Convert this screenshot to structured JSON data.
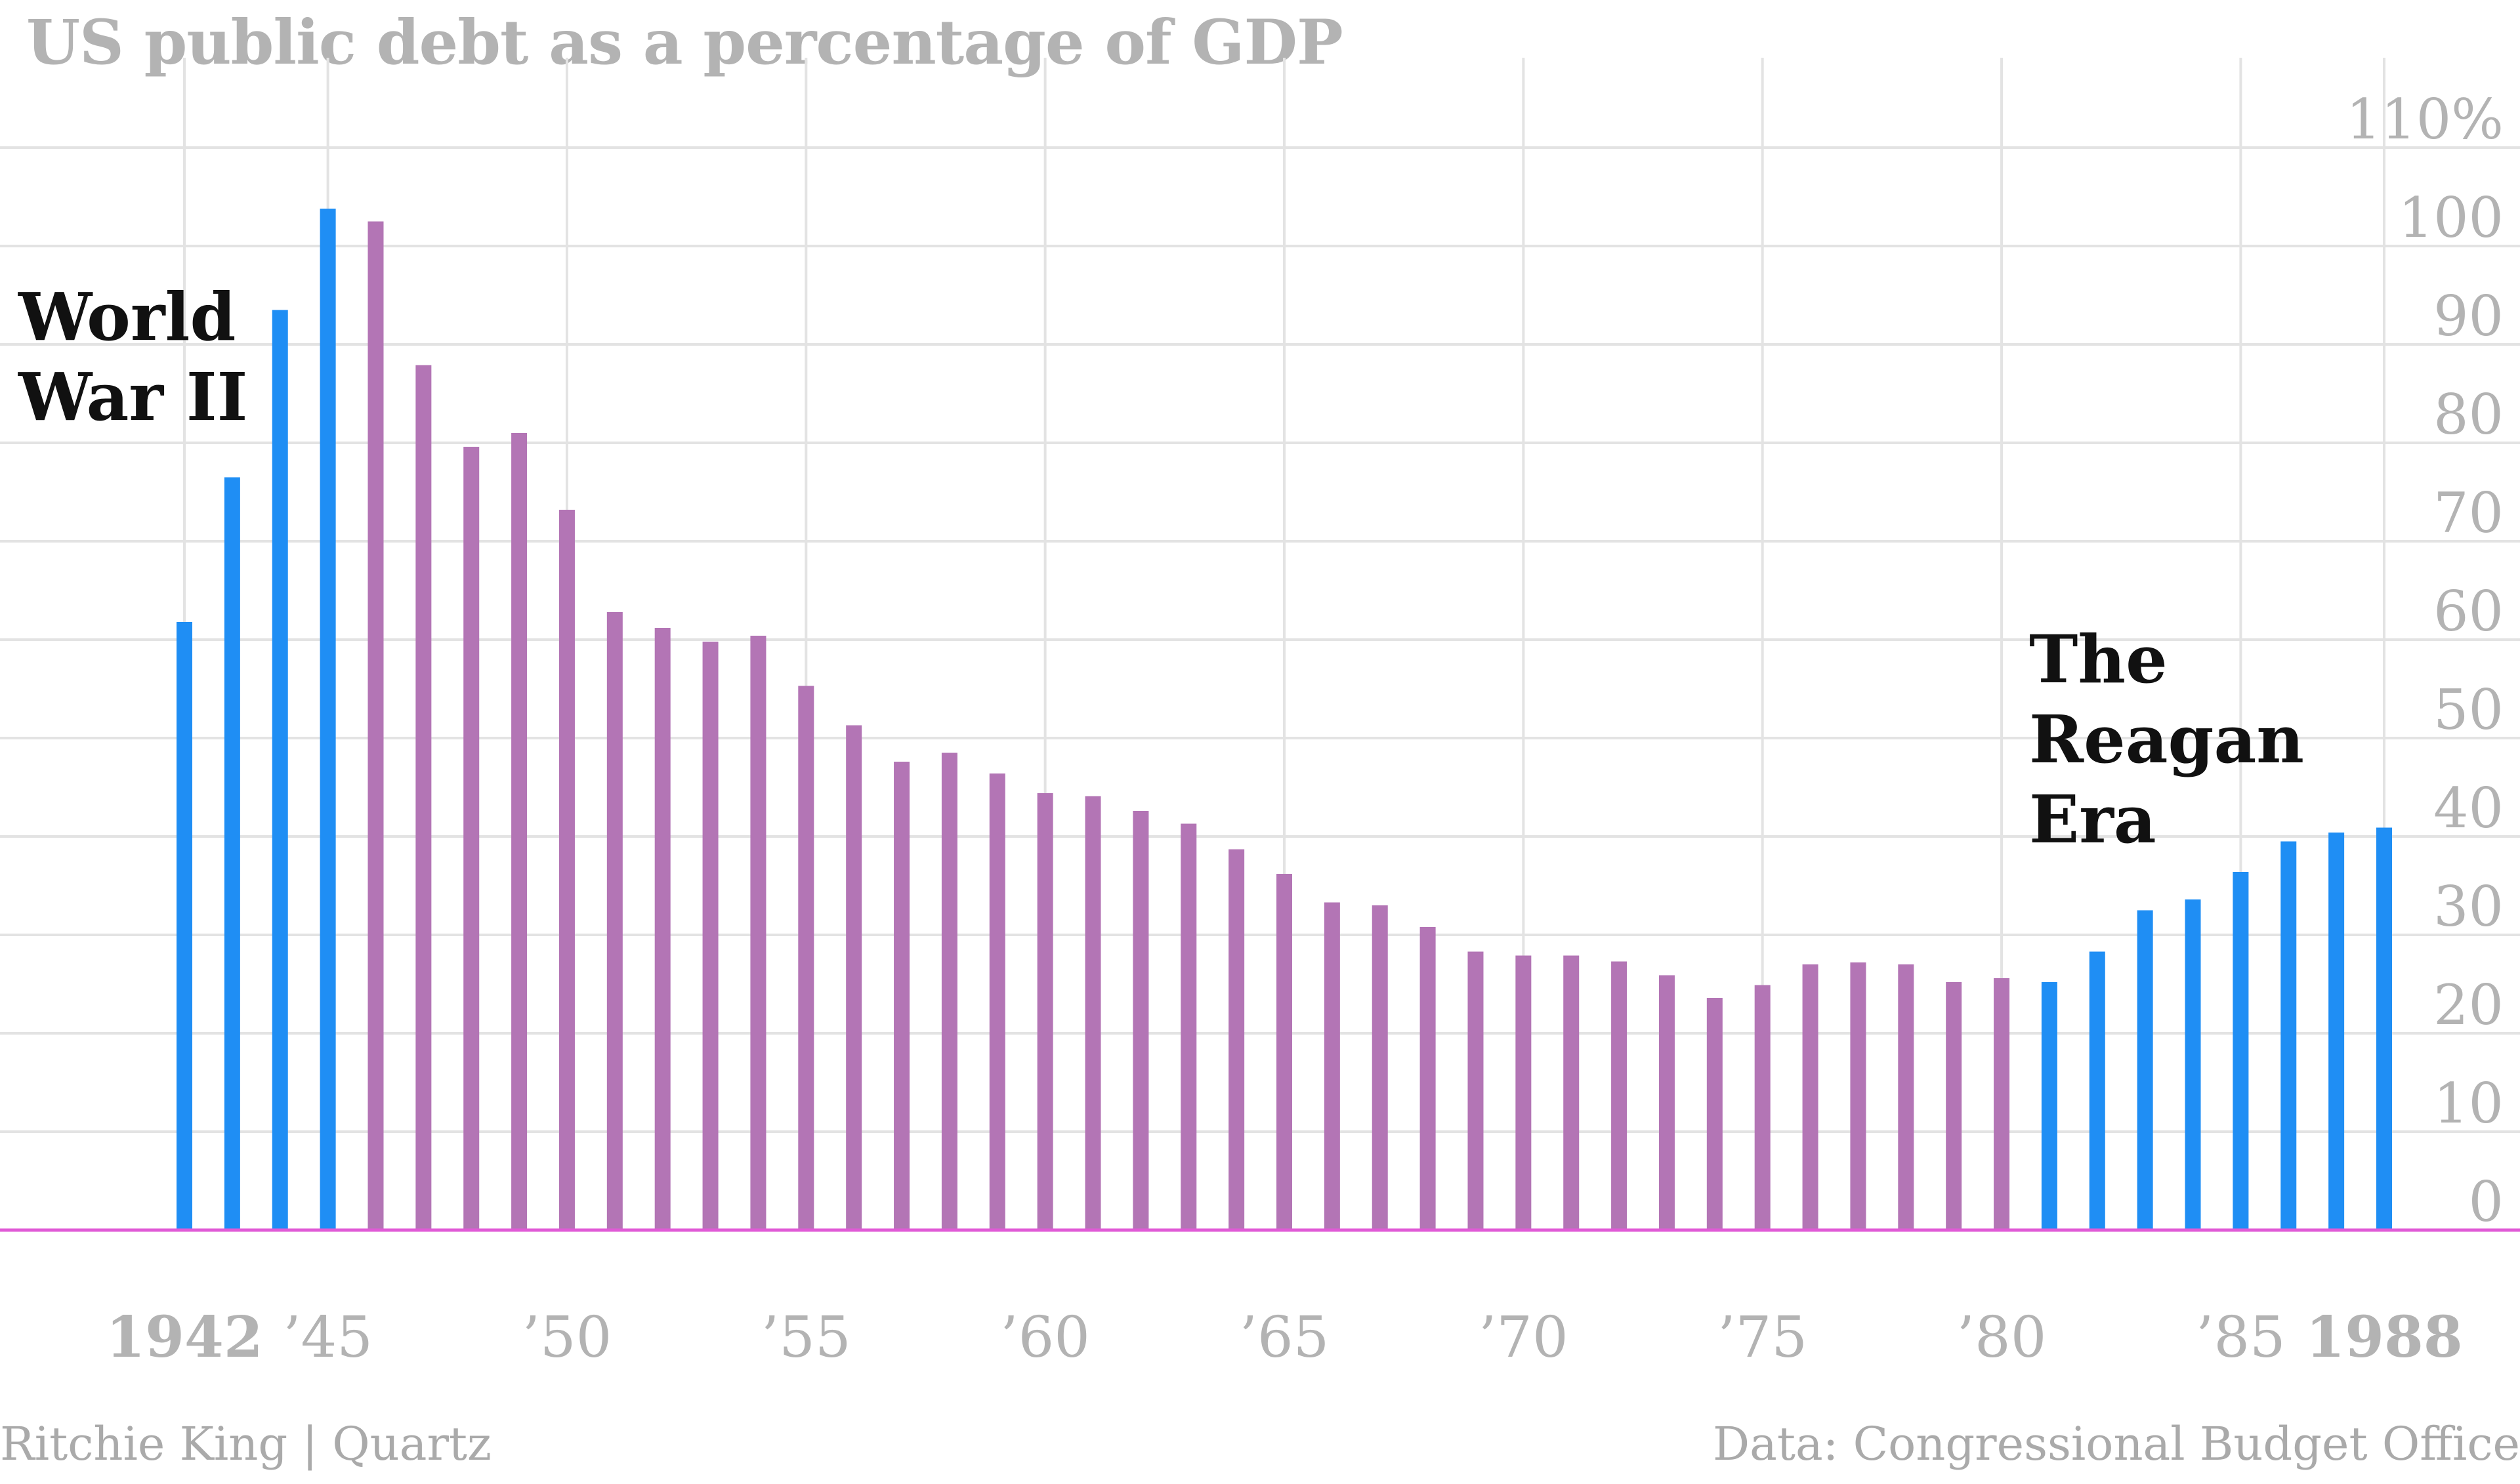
{
  "chart_data": {
    "type": "bar",
    "title": "US public debt as a percentage of GDP",
    "xlabel": "",
    "ylabel": "",
    "x": [
      1942,
      1943,
      1944,
      1945,
      1946,
      1947,
      1948,
      1949,
      1950,
      1951,
      1952,
      1953,
      1954,
      1955,
      1956,
      1957,
      1958,
      1959,
      1960,
      1961,
      1962,
      1963,
      1964,
      1965,
      1966,
      1967,
      1968,
      1969,
      1970,
      1971,
      1972,
      1973,
      1974,
      1975,
      1976,
      1977,
      1978,
      1979,
      1980,
      1981,
      1982,
      1983,
      1984,
      1985,
      1986,
      1987,
      1988
    ],
    "values": [
      61.8,
      76.5,
      93.5,
      103.8,
      102.5,
      87.9,
      79.6,
      81.0,
      73.2,
      62.8,
      61.2,
      59.8,
      60.4,
      55.3,
      51.3,
      47.6,
      48.5,
      46.4,
      44.4,
      44.1,
      42.6,
      41.3,
      38.7,
      36.2,
      33.3,
      33.0,
      30.8,
      28.3,
      27.9,
      27.9,
      27.3,
      25.9,
      23.6,
      24.9,
      27.0,
      27.2,
      27.0,
      25.2,
      25.6,
      25.2,
      28.3,
      32.5,
      33.6,
      36.4,
      39.5,
      40.4,
      40.9
    ],
    "colors": [
      "#1f8ef4",
      "#1f8ef4",
      "#1f8ef4",
      "#1f8ef4",
      "#b375b5",
      "#b375b5",
      "#b375b5",
      "#b375b5",
      "#b375b5",
      "#b375b5",
      "#b375b5",
      "#b375b5",
      "#b375b5",
      "#b375b5",
      "#b375b5",
      "#b375b5",
      "#b375b5",
      "#b375b5",
      "#b375b5",
      "#b375b5",
      "#b375b5",
      "#b375b5",
      "#b375b5",
      "#b375b5",
      "#b375b5",
      "#b375b5",
      "#b375b5",
      "#b375b5",
      "#b375b5",
      "#b375b5",
      "#b375b5",
      "#b375b5",
      "#b375b5",
      "#b375b5",
      "#b375b5",
      "#b375b5",
      "#b375b5",
      "#b375b5",
      "#b375b5",
      "#1f8ef4",
      "#1f8ef4",
      "#1f8ef4",
      "#1f8ef4",
      "#1f8ef4",
      "#1f8ef4",
      "#1f8ef4",
      "#1f8ef4"
    ],
    "ylim": [
      0,
      110
    ],
    "y_ticks": [
      {
        "value": 0,
        "label": "0"
      },
      {
        "value": 10,
        "label": "10"
      },
      {
        "value": 20,
        "label": "20"
      },
      {
        "value": 30,
        "label": "30"
      },
      {
        "value": 40,
        "label": "40"
      },
      {
        "value": 50,
        "label": "50"
      },
      {
        "value": 60,
        "label": "60"
      },
      {
        "value": 70,
        "label": "70"
      },
      {
        "value": 80,
        "label": "80"
      },
      {
        "value": 90,
        "label": "90"
      },
      {
        "value": 100,
        "label": "100"
      },
      {
        "value": 110,
        "label": "110%"
      }
    ],
    "x_ticks": [
      {
        "value": 1942,
        "label": "1942",
        "bold": true
      },
      {
        "value": 1945,
        "label": "’45",
        "bold": false
      },
      {
        "value": 1950,
        "label": "’50",
        "bold": false
      },
      {
        "value": 1955,
        "label": "’55",
        "bold": false
      },
      {
        "value": 1960,
        "label": "’60",
        "bold": false
      },
      {
        "value": 1965,
        "label": "’65",
        "bold": false
      },
      {
        "value": 1970,
        "label": "’70",
        "bold": false
      },
      {
        "value": 1975,
        "label": "’75",
        "bold": false
      },
      {
        "value": 1980,
        "label": "’80",
        "bold": false
      },
      {
        "value": 1985,
        "label": "’85",
        "bold": false
      },
      {
        "value": 1988,
        "label": "1988",
        "bold": true
      }
    ],
    "grid": true,
    "y_axis_position": "right",
    "annotations": [
      {
        "name": "annotation-world-war-ii",
        "lines": [
          "World",
          "War II"
        ]
      },
      {
        "name": "annotation-reagan-era",
        "lines": [
          "The",
          "Reagan",
          "Era"
        ]
      }
    ],
    "colors_legend": {
      "highlight": "#1f8ef4",
      "base": "#b375b5",
      "zero_line": "#e05ad6",
      "grid": "#e3e3e3"
    }
  },
  "source_left": "Ritchie King | Quartz",
  "source_right": "Data: Congressional Budget Office"
}
